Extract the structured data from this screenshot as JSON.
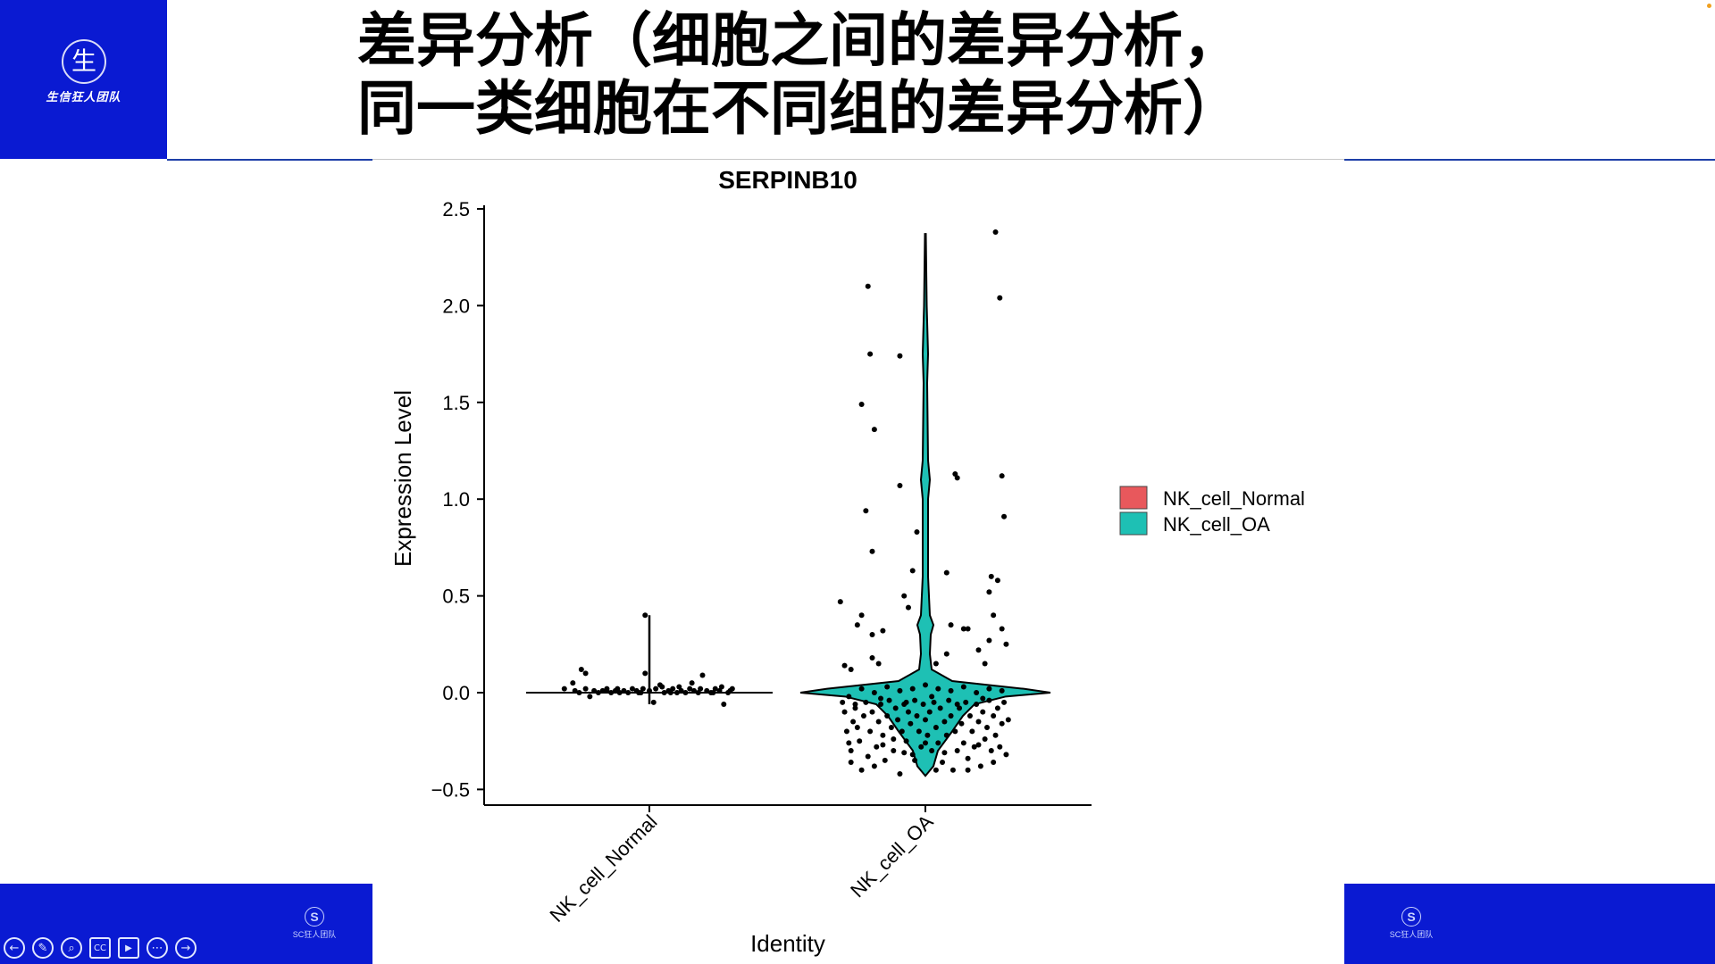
{
  "slide": {
    "title_line1": "差异分析（细胞之间的差异分析，",
    "title_line2": "同一类细胞在不同组的差异分析）",
    "logo_char": "生",
    "logo_text": "生信狂人团队",
    "footer_logo_char": "S",
    "footer_logo_text": "SC狂人团队"
  },
  "controls": [
    {
      "name": "back-icon",
      "glyph": "←"
    },
    {
      "name": "pen-icon",
      "glyph": "✎"
    },
    {
      "name": "zoom-icon",
      "glyph": "⌕"
    },
    {
      "name": "captions-icon",
      "glyph": "CC"
    },
    {
      "name": "video-icon",
      "glyph": "▶"
    },
    {
      "name": "more-icon",
      "glyph": "⋯"
    },
    {
      "name": "forward-icon",
      "glyph": "→"
    }
  ],
  "chart_data": {
    "type": "violin",
    "title": "SERPINB10",
    "xlabel": "Identity",
    "ylabel": "Expression Level",
    "ylim": [
      -0.55,
      2.55
    ],
    "yticks": [
      2.5,
      2.0,
      1.5,
      1.0,
      0.5,
      0.0,
      -0.5
    ],
    "ytick_labels": [
      "2.5",
      "2.0",
      "1.5",
      "1.0",
      "0.5",
      "0.0",
      "−0.5"
    ],
    "categories": [
      "NK_cell_Normal",
      "NK_cell_OA"
    ],
    "legend": {
      "position": "right",
      "entries": [
        "NK_cell_Normal",
        "NK_cell_OA"
      ]
    },
    "series": [
      {
        "name": "NK_cell_Normal",
        "color": "#e8585c",
        "violin_max": 0.4,
        "violin_min": -0.06,
        "points": [
          [
            -0.4,
            0.02
          ],
          [
            -0.35,
            0.01
          ],
          [
            -0.33,
            0.0
          ],
          [
            -0.3,
            0.02
          ],
          [
            -0.28,
            -0.02
          ],
          [
            -0.26,
            0.01
          ],
          [
            -0.24,
            0.0
          ],
          [
            -0.22,
            0.01
          ],
          [
            -0.2,
            0.02
          ],
          [
            -0.18,
            0.0
          ],
          [
            -0.16,
            0.01
          ],
          [
            -0.14,
            0.0
          ],
          [
            -0.12,
            0.01
          ],
          [
            -0.1,
            0.0
          ],
          [
            -0.08,
            0.02
          ],
          [
            -0.06,
            0.01
          ],
          [
            -0.04,
            0.0
          ],
          [
            -0.02,
            0.1
          ],
          [
            0.0,
            0.01
          ],
          [
            0.02,
            -0.05
          ],
          [
            0.03,
            0.02
          ],
          [
            0.05,
            0.04
          ],
          [
            0.07,
            0.0
          ],
          [
            0.09,
            0.01
          ],
          [
            0.11,
            0.02
          ],
          [
            0.13,
            0.0
          ],
          [
            0.15,
            0.01
          ],
          [
            0.17,
            0.0
          ],
          [
            0.19,
            0.02
          ],
          [
            0.21,
            0.01
          ],
          [
            0.23,
            0.0
          ],
          [
            0.25,
            0.09
          ],
          [
            0.27,
            0.01
          ],
          [
            0.29,
            0.0
          ],
          [
            0.31,
            0.02
          ],
          [
            0.33,
            0.01
          ],
          [
            0.35,
            -0.06
          ],
          [
            0.37,
            0.0
          ],
          [
            0.39,
            0.02
          ],
          [
            -0.3,
            0.1
          ],
          [
            -0.32,
            0.12
          ],
          [
            -0.36,
            0.05
          ],
          [
            0.06,
            0.03
          ],
          [
            0.14,
            0.03
          ],
          [
            0.2,
            0.05
          ],
          [
            -0.05,
            0.0
          ],
          [
            -0.03,
            0.02
          ],
          [
            0.3,
            0.0
          ],
          [
            0.34,
            0.03
          ],
          [
            0.38,
            0.01
          ],
          [
            -0.2,
            0.01
          ],
          [
            0.1,
            0.0
          ],
          [
            -0.15,
            0.02
          ],
          [
            0.24,
            0.02
          ],
          [
            -0.02,
            0.4
          ]
        ]
      },
      {
        "name": "NK_cell_OA",
        "color": "#1ec0b4",
        "violin_max": 2.37,
        "violin_min": -0.43,
        "points": [
          [
            -0.4,
            0.47
          ],
          [
            -0.3,
            1.49
          ],
          [
            -0.28,
            0.94
          ],
          [
            -0.27,
            2.1
          ],
          [
            -0.26,
            1.75
          ],
          [
            -0.25,
            0.73
          ],
          [
            -0.24,
            1.36
          ],
          [
            -0.12,
            1.74
          ],
          [
            -0.12,
            1.07
          ],
          [
            -0.04,
            0.83
          ],
          [
            -0.06,
            0.63
          ],
          [
            -0.08,
            0.44
          ],
          [
            -0.1,
            0.5
          ],
          [
            0.14,
            1.13
          ],
          [
            0.15,
            1.11
          ],
          [
            0.1,
            0.62
          ],
          [
            0.33,
            2.38
          ],
          [
            0.35,
            2.04
          ],
          [
            0.36,
            1.12
          ],
          [
            0.37,
            0.91
          ],
          [
            0.31,
            0.6
          ],
          [
            0.34,
            0.58
          ],
          [
            0.3,
            0.52
          ],
          [
            0.32,
            0.4
          ],
          [
            0.36,
            0.33
          ],
          [
            0.38,
            0.25
          ],
          [
            0.3,
            0.27
          ],
          [
            0.12,
            0.35
          ],
          [
            0.18,
            0.33
          ],
          [
            0.2,
            0.33
          ],
          [
            -0.3,
            0.4
          ],
          [
            -0.32,
            0.35
          ],
          [
            -0.25,
            0.3
          ],
          [
            -0.2,
            0.32
          ],
          [
            -0.38,
            0.14
          ],
          [
            -0.35,
            0.12
          ],
          [
            -0.25,
            0.18
          ],
          [
            -0.22,
            0.15
          ],
          [
            0.05,
            0.15
          ],
          [
            0.1,
            0.2
          ],
          [
            0.25,
            0.22
          ],
          [
            0.28,
            0.15
          ],
          [
            -0.39,
            -0.05
          ],
          [
            -0.38,
            -0.1
          ],
          [
            -0.37,
            -0.2
          ],
          [
            -0.36,
            -0.26
          ],
          [
            -0.35,
            -0.3
          ],
          [
            -0.34,
            -0.15
          ],
          [
            -0.33,
            -0.08
          ],
          [
            -0.32,
            -0.18
          ],
          [
            -0.31,
            -0.25
          ],
          [
            -0.3,
            -0.4
          ],
          [
            -0.29,
            -0.12
          ],
          [
            -0.28,
            -0.05
          ],
          [
            -0.27,
            -0.33
          ],
          [
            -0.26,
            -0.2
          ],
          [
            -0.25,
            -0.1
          ],
          [
            -0.24,
            -0.38
          ],
          [
            -0.23,
            -0.28
          ],
          [
            -0.22,
            -0.15
          ],
          [
            -0.21,
            -0.06
          ],
          [
            -0.2,
            -0.22
          ],
          [
            -0.19,
            -0.35
          ],
          [
            -0.18,
            -0.12
          ],
          [
            -0.17,
            -0.04
          ],
          [
            -0.16,
            -0.18
          ],
          [
            -0.15,
            -0.3
          ],
          [
            -0.14,
            -0.08
          ],
          [
            -0.13,
            -0.14
          ],
          [
            -0.12,
            -0.42
          ],
          [
            -0.11,
            -0.2
          ],
          [
            -0.1,
            -0.06
          ],
          [
            -0.09,
            -0.25
          ],
          [
            -0.08,
            -0.1
          ],
          [
            -0.07,
            -0.16
          ],
          [
            -0.06,
            -0.32
          ],
          [
            -0.05,
            -0.04
          ],
          [
            -0.04,
            -0.12
          ],
          [
            -0.03,
            -0.2
          ],
          [
            -0.02,
            -0.28
          ],
          [
            -0.01,
            -0.06
          ],
          [
            0.0,
            -0.14
          ],
          [
            0.01,
            -0.22
          ],
          [
            0.02,
            -0.1
          ],
          [
            0.03,
            -0.3
          ],
          [
            0.04,
            -0.05
          ],
          [
            0.05,
            -0.18
          ],
          [
            0.06,
            -0.26
          ],
          [
            0.07,
            -0.08
          ],
          [
            0.08,
            -0.36
          ],
          [
            0.09,
            -0.15
          ],
          [
            0.1,
            -0.22
          ],
          [
            0.11,
            -0.04
          ],
          [
            0.12,
            -0.12
          ],
          [
            0.13,
            -0.4
          ],
          [
            0.14,
            -0.2
          ],
          [
            0.15,
            -0.3
          ],
          [
            0.16,
            -0.08
          ],
          [
            0.17,
            -0.16
          ],
          [
            0.18,
            -0.26
          ],
          [
            0.19,
            -0.05
          ],
          [
            0.2,
            -0.34
          ],
          [
            0.21,
            -0.12
          ],
          [
            0.22,
            -0.2
          ],
          [
            0.23,
            -0.28
          ],
          [
            0.24,
            -0.06
          ],
          [
            0.25,
            -0.15
          ],
          [
            0.26,
            -0.38
          ],
          [
            0.27,
            -0.1
          ],
          [
            0.28,
            -0.24
          ],
          [
            0.29,
            -0.18
          ],
          [
            0.3,
            -0.04
          ],
          [
            0.31,
            -0.3
          ],
          [
            0.32,
            -0.12
          ],
          [
            0.33,
            -0.22
          ],
          [
            0.34,
            -0.08
          ],
          [
            0.35,
            -0.28
          ],
          [
            0.36,
            -0.16
          ],
          [
            0.37,
            -0.05
          ],
          [
            0.38,
            -0.32
          ],
          [
            0.39,
            -0.14
          ],
          [
            -0.36,
            -0.02
          ],
          [
            -0.3,
            0.02
          ],
          [
            -0.24,
            0.0
          ],
          [
            -0.18,
            0.03
          ],
          [
            -0.12,
            0.01
          ],
          [
            -0.06,
            0.02
          ],
          [
            0.0,
            0.04
          ],
          [
            0.06,
            0.02
          ],
          [
            0.12,
            0.01
          ],
          [
            0.18,
            0.03
          ],
          [
            0.24,
            0.0
          ],
          [
            0.3,
            0.02
          ],
          [
            0.36,
            0.01
          ],
          [
            -0.33,
            -0.06
          ],
          [
            -0.21,
            -0.03
          ],
          [
            -0.09,
            -0.05
          ],
          [
            0.03,
            -0.02
          ],
          [
            0.15,
            -0.06
          ],
          [
            0.27,
            -0.03
          ],
          [
            -0.15,
            -0.24
          ],
          [
            -0.05,
            -0.35
          ],
          [
            0.05,
            -0.4
          ],
          [
            0.2,
            -0.4
          ],
          [
            -0.35,
            -0.36
          ],
          [
            0.32,
            -0.36
          ],
          [
            -0.1,
            -0.31
          ],
          [
            0.0,
            -0.26
          ],
          [
            0.09,
            -0.31
          ],
          [
            -0.2,
            -0.27
          ],
          [
            0.25,
            -0.27
          ]
        ]
      }
    ]
  }
}
